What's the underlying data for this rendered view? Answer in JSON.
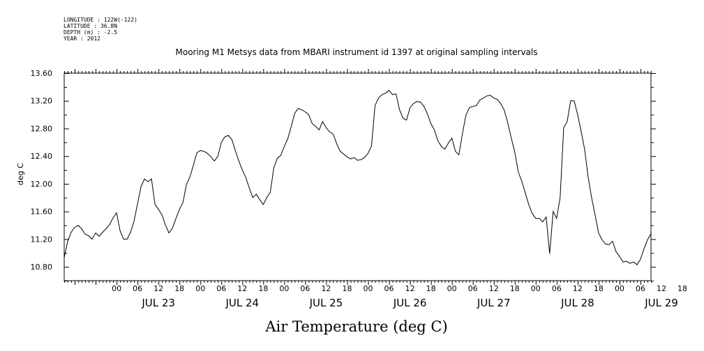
{
  "meta_lines": [
    "LONGITUDE : 122W(-122)",
    "LATITUDE : 36.8N",
    "DEPTH (m) : -2.5",
    "YEAR : 2012"
  ],
  "chart_data": {
    "type": "line",
    "title": "Mooring M1 Metsys data from MBARI instrument id 1397 at original sampling intervals",
    "xlabel": "Air Temperature (deg C)",
    "ylabel": "deg C",
    "ylim": [
      10.6,
      13.6
    ],
    "yticks": [
      "10.80",
      "11.20",
      "11.60",
      "12.00",
      "12.40",
      "12.80",
      "13.20",
      "13.60"
    ],
    "xlim_hours": [
      -15,
      153
    ],
    "hour_tick_labels": [
      "00",
      "06",
      "12",
      "18",
      "00",
      "06",
      "12",
      "18",
      "00",
      "06",
      "12",
      "18",
      "00",
      "06",
      "12",
      "18",
      "00",
      "06",
      "12",
      "18",
      "00",
      "06",
      "12",
      "18",
      "00",
      "06",
      "12",
      "18"
    ],
    "day_labels": [
      "JUL 23",
      "JUL 24",
      "JUL 25",
      "JUL 26",
      "JUL 27",
      "JUL 28",
      "JUL 29"
    ],
    "series": [
      {
        "x": [
          -15,
          -14,
          -13,
          -12,
          -11,
          -10,
          -9,
          -8,
          -7,
          -6,
          -5,
          -4,
          -3,
          -2,
          -1,
          0,
          1,
          2,
          3,
          4,
          5,
          6,
          7,
          8,
          9,
          10,
          11,
          12,
          13,
          14,
          15,
          16,
          17,
          18,
          19,
          20,
          21,
          22,
          23,
          24,
          25,
          26,
          27,
          28,
          29,
          30,
          31,
          32,
          33,
          34,
          35,
          36,
          37,
          38,
          39,
          40,
          41,
          42,
          43,
          44,
          45,
          46,
          47,
          48,
          49,
          50,
          51,
          52,
          53,
          54,
          55,
          56,
          57,
          58,
          59,
          60,
          61,
          62,
          63,
          64,
          65,
          66,
          67,
          68,
          69,
          70,
          71,
          72,
          73,
          74,
          75,
          76,
          77,
          78,
          79,
          80,
          81,
          82,
          83,
          84,
          85,
          86,
          87,
          88,
          89,
          90,
          91,
          92,
          93,
          94,
          95,
          96,
          97,
          98,
          99,
          100,
          101,
          102,
          103,
          104,
          105,
          106,
          107,
          108,
          109,
          110,
          111,
          112,
          113,
          114,
          115,
          116,
          117,
          118,
          119,
          120,
          121,
          122,
          123,
          124,
          125,
          126,
          127,
          128,
          129,
          130,
          131,
          132,
          133,
          134,
          135,
          136,
          137,
          138,
          139,
          140,
          141,
          142,
          143,
          144,
          145,
          146,
          147,
          148,
          149,
          150,
          151,
          152,
          153
        ],
        "values": [
          10.93,
          11.17,
          11.3,
          11.37,
          11.4,
          11.35,
          11.27,
          11.25,
          11.2,
          11.29,
          11.24,
          11.3,
          11.35,
          11.41,
          11.51,
          11.58,
          11.32,
          11.2,
          11.2,
          11.3,
          11.46,
          11.71,
          11.96,
          12.07,
          12.03,
          12.07,
          11.7,
          11.63,
          11.55,
          11.4,
          11.29,
          11.36,
          11.5,
          11.63,
          11.73,
          11.99,
          12.1,
          12.27,
          12.45,
          12.48,
          12.47,
          12.44,
          12.39,
          12.33,
          12.4,
          12.6,
          12.68,
          12.7,
          12.64,
          12.48,
          12.33,
          12.2,
          12.09,
          11.94,
          11.8,
          11.85,
          11.77,
          11.7,
          11.8,
          11.88,
          12.23,
          12.37,
          12.41,
          12.54,
          12.65,
          12.83,
          13.02,
          13.09,
          13.07,
          13.04,
          13.0,
          12.87,
          12.83,
          12.78,
          12.9,
          12.81,
          12.75,
          12.72,
          12.58,
          12.47,
          12.43,
          12.39,
          12.36,
          12.38,
          12.34,
          12.35,
          12.38,
          12.44,
          12.55,
          13.13,
          13.24,
          13.29,
          13.31,
          13.35,
          13.29,
          13.3,
          13.07,
          12.95,
          12.92,
          13.1,
          13.16,
          13.19,
          13.18,
          13.12,
          13.01,
          12.87,
          12.78,
          12.62,
          12.54,
          12.5,
          12.59,
          12.66,
          12.47,
          12.42,
          12.72,
          12.99,
          13.1,
          13.12,
          13.13,
          13.21,
          13.24,
          13.27,
          13.28,
          13.24,
          13.22,
          13.16,
          13.06,
          12.88,
          12.66,
          12.46,
          12.17,
          12.04,
          11.87,
          11.7,
          11.57,
          11.5,
          11.5,
          11.45,
          11.52,
          10.99,
          11.6,
          11.5,
          11.8,
          12.81,
          12.9,
          13.2,
          13.2,
          13.0,
          12.76,
          12.5,
          12.1,
          11.8,
          11.55,
          11.29,
          11.19,
          11.13,
          11.12,
          11.17,
          11.02,
          10.95,
          10.87,
          10.88,
          10.85,
          10.87,
          10.83,
          10.91,
          11.06,
          11.19,
          11.28
        ]
      }
    ]
  }
}
